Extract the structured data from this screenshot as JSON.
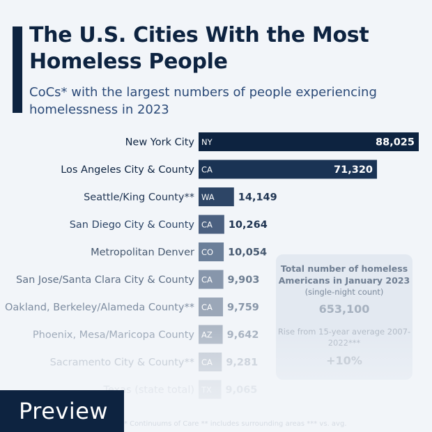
{
  "header": {
    "title": "The U.S. Cities With the Most Homeless People",
    "subtitle": "CoCs* with the largest numbers of people experiencing homelessness in 2023"
  },
  "chart_data": {
    "type": "bar",
    "orientation": "horizontal",
    "categories": [
      "New York City",
      "Los Angeles City & County",
      "Seattle/King County**",
      "San Diego City & County",
      "Metropolitan Denver",
      "San Jose/Santa Clara City & County",
      "Oakland, Berkeley/Alameda County**",
      "Phoenix, Mesa/Maricopa County",
      "Sacramento City & County**",
      "Texas (state total)"
    ],
    "states": [
      "NY",
      "CA",
      "WA",
      "CA",
      "CO",
      "CA",
      "CA",
      "AZ",
      "CA",
      "TX"
    ],
    "values": [
      88025,
      71320,
      14149,
      10264,
      10054,
      9903,
      9759,
      9642,
      9281,
      9065
    ],
    "value_labels": [
      "88,025",
      "71,320",
      "14,149",
      "10,264",
      "10,054",
      "9,903",
      "9,759",
      "9,642",
      "9,281",
      "9,065"
    ],
    "xlim": [
      0,
      88025
    ],
    "colors": {
      "bars": [
        "#0d2340",
        "#1a3354",
        "#2d4566",
        "#4b6080",
        "#6b7f99",
        "#8796ab",
        "#9ba7b8",
        "#adb7c5",
        "#c0c8d3",
        "#d3d9e1"
      ],
      "value_text": [
        "#ffffff",
        "#ffffff",
        "#1f3452",
        "#1f3452",
        "#46586f",
        "#6e7e92",
        "#8896a8",
        "#a3aebd",
        "#bcc4cf",
        "#ccd3dc"
      ],
      "label_text": [
        "#0d2340",
        "#0d2340",
        "#1f3452",
        "#2d4566",
        "#46586f",
        "#5d6e85",
        "#7d8ca0",
        "#9aa6b6",
        "#b4bdc9",
        "#cdd3dc"
      ]
    }
  },
  "info_box": {
    "heading": "Total number of homeless Americans in January 2023",
    "note": "(single-night count)",
    "total": "653,100",
    "rise_label": "Rise from 15-year average 2007-2022***",
    "rise_value": "+10%"
  },
  "footer": {
    "note": "* Continuums of Care  ** includes surrounding areas  *** vs. avg."
  },
  "badge": {
    "label": "Preview"
  }
}
